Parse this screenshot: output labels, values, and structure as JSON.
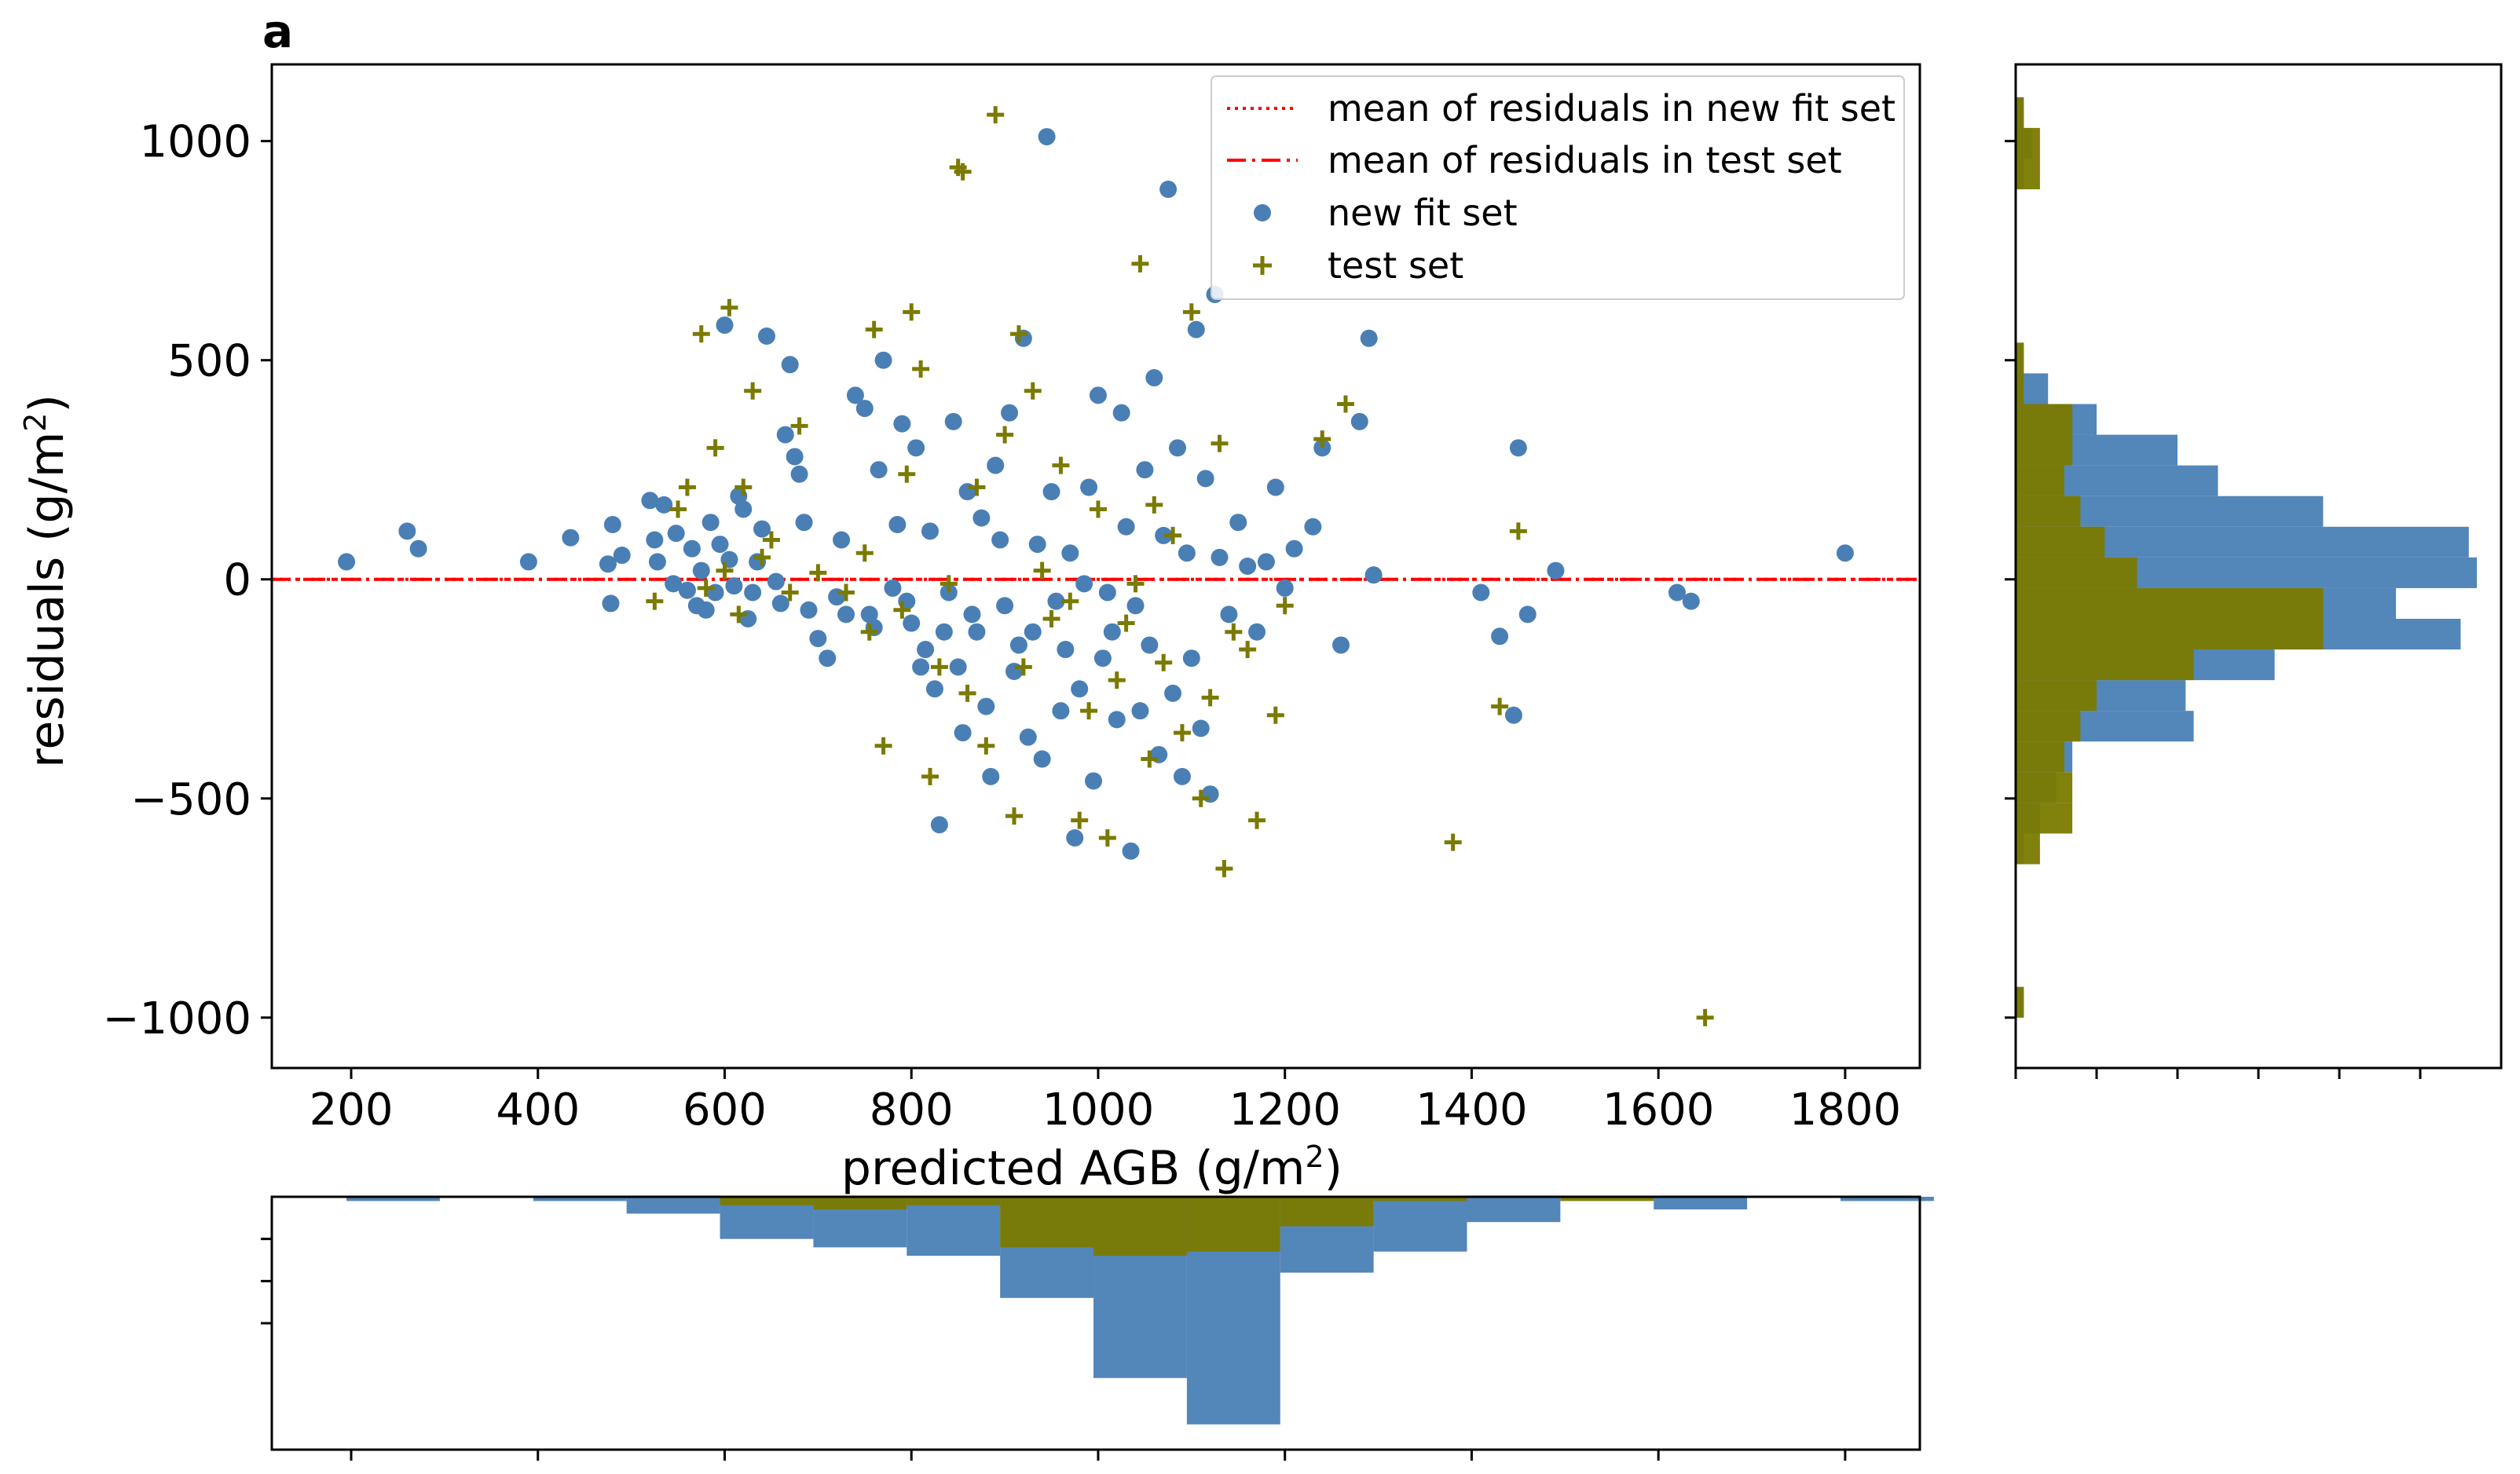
{
  "panel_label": "a",
  "colors": {
    "fit": "#4a7fb5",
    "test": "#7a7a00",
    "mean_line": "#ff0000",
    "axis": "#000000"
  },
  "legend": {
    "items": [
      {
        "label": "mean of residuals in new fit set",
        "style": "dotted"
      },
      {
        "label": "mean of residuals in test set",
        "style": "dashdot"
      },
      {
        "label": "new fit set",
        "style": "circle"
      },
      {
        "label": "test set",
        "style": "plus"
      }
    ]
  },
  "chart_data": {
    "type": "scatter",
    "title": "",
    "xlabel": "predicted AGB (g/m",
    "xlabel_sup": "2",
    "xlabel_end": ")",
    "ylabel": "residuals (g/m",
    "ylabel_sup": "2",
    "ylabel_end": ")",
    "xlim": [
      115,
      1880
    ],
    "ylim": [
      -1115,
      1175
    ],
    "xticks": [
      200,
      400,
      600,
      800,
      1000,
      1200,
      1400,
      1600,
      1800
    ],
    "xtick_labels": [
      "200",
      "400",
      "600",
      "800",
      "1000",
      "1200",
      "1400",
      "1600",
      "1800"
    ],
    "yticks": [
      1000,
      500,
      0,
      -500,
      -1000
    ],
    "ytick_labels": [
      "1000",
      "500",
      "0",
      "−500",
      "−1000"
    ],
    "mean_fit": 0,
    "mean_test": 0,
    "series": [
      {
        "name": "new fit set",
        "marker": "circle",
        "points": [
          [
            195,
            40
          ],
          [
            260,
            110
          ],
          [
            272,
            70
          ],
          [
            390,
            40
          ],
          [
            435,
            95
          ],
          [
            475,
            35
          ],
          [
            478,
            -55
          ],
          [
            480,
            125
          ],
          [
            490,
            55
          ],
          [
            520,
            180
          ],
          [
            525,
            90
          ],
          [
            528,
            40
          ],
          [
            535,
            170
          ],
          [
            545,
            -10
          ],
          [
            548,
            105
          ],
          [
            560,
            -25
          ],
          [
            565,
            70
          ],
          [
            570,
            -60
          ],
          [
            575,
            20
          ],
          [
            580,
            -70
          ],
          [
            585,
            130
          ],
          [
            590,
            -30
          ],
          [
            595,
            80
          ],
          [
            600,
            580
          ],
          [
            605,
            45
          ],
          [
            610,
            -15
          ],
          [
            615,
            190
          ],
          [
            620,
            160
          ],
          [
            625,
            -90
          ],
          [
            630,
            -30
          ],
          [
            635,
            40
          ],
          [
            640,
            115
          ],
          [
            645,
            555
          ],
          [
            655,
            -5
          ],
          [
            660,
            -55
          ],
          [
            665,
            330
          ],
          [
            670,
            490
          ],
          [
            675,
            280
          ],
          [
            680,
            240
          ],
          [
            685,
            130
          ],
          [
            690,
            -70
          ],
          [
            700,
            -135
          ],
          [
            710,
            -180
          ],
          [
            720,
            -40
          ],
          [
            725,
            90
          ],
          [
            730,
            -80
          ],
          [
            740,
            420
          ],
          [
            750,
            390
          ],
          [
            755,
            -80
          ],
          [
            760,
            -110
          ],
          [
            765,
            250
          ],
          [
            770,
            500
          ],
          [
            780,
            -20
          ],
          [
            785,
            125
          ],
          [
            790,
            355
          ],
          [
            795,
            -50
          ],
          [
            800,
            -100
          ],
          [
            805,
            300
          ],
          [
            810,
            -200
          ],
          [
            815,
            -160
          ],
          [
            820,
            110
          ],
          [
            825,
            -250
          ],
          [
            830,
            -560
          ],
          [
            835,
            -120
          ],
          [
            840,
            -30
          ],
          [
            845,
            360
          ],
          [
            850,
            -200
          ],
          [
            855,
            -350
          ],
          [
            860,
            200
          ],
          [
            865,
            -80
          ],
          [
            870,
            -120
          ],
          [
            875,
            140
          ],
          [
            880,
            -290
          ],
          [
            885,
            -450
          ],
          [
            890,
            260
          ],
          [
            895,
            90
          ],
          [
            900,
            -60
          ],
          [
            905,
            380
          ],
          [
            910,
            -210
          ],
          [
            915,
            -150
          ],
          [
            920,
            550
          ],
          [
            925,
            -360
          ],
          [
            930,
            -120
          ],
          [
            935,
            80
          ],
          [
            940,
            -410
          ],
          [
            945,
            1010
          ],
          [
            950,
            200
          ],
          [
            955,
            -50
          ],
          [
            960,
            -300
          ],
          [
            965,
            -160
          ],
          [
            970,
            60
          ],
          [
            975,
            -590
          ],
          [
            980,
            -250
          ],
          [
            985,
            -10
          ],
          [
            990,
            210
          ],
          [
            995,
            -460
          ],
          [
            1000,
            420
          ],
          [
            1005,
            -180
          ],
          [
            1010,
            -30
          ],
          [
            1015,
            -120
          ],
          [
            1020,
            -320
          ],
          [
            1025,
            380
          ],
          [
            1030,
            120
          ],
          [
            1035,
            -620
          ],
          [
            1040,
            -60
          ],
          [
            1045,
            -300
          ],
          [
            1050,
            250
          ],
          [
            1055,
            -150
          ],
          [
            1060,
            460
          ],
          [
            1065,
            -400
          ],
          [
            1070,
            100
          ],
          [
            1075,
            890
          ],
          [
            1080,
            -260
          ],
          [
            1085,
            300
          ],
          [
            1090,
            -450
          ],
          [
            1095,
            60
          ],
          [
            1100,
            -180
          ],
          [
            1105,
            570
          ],
          [
            1110,
            -340
          ],
          [
            1115,
            230
          ],
          [
            1120,
            -490
          ],
          [
            1125,
            650
          ],
          [
            1130,
            50
          ],
          [
            1140,
            -80
          ],
          [
            1150,
            130
          ],
          [
            1160,
            30
          ],
          [
            1170,
            -120
          ],
          [
            1180,
            40
          ],
          [
            1190,
            210
          ],
          [
            1200,
            -20
          ],
          [
            1210,
            70
          ],
          [
            1230,
            120
          ],
          [
            1240,
            300
          ],
          [
            1260,
            -150
          ],
          [
            1280,
            360
          ],
          [
            1290,
            550
          ],
          [
            1295,
            10
          ],
          [
            1410,
            -30
          ],
          [
            1430,
            -130
          ],
          [
            1445,
            -310
          ],
          [
            1450,
            300
          ],
          [
            1460,
            -80
          ],
          [
            1490,
            20
          ],
          [
            1620,
            -30
          ],
          [
            1635,
            -50
          ],
          [
            1800,
            60
          ]
        ]
      },
      {
        "name": "test set",
        "marker": "plus",
        "points": [
          [
            525,
            -50
          ],
          [
            550,
            160
          ],
          [
            560,
            210
          ],
          [
            575,
            560
          ],
          [
            580,
            -20
          ],
          [
            590,
            300
          ],
          [
            600,
            20
          ],
          [
            605,
            620
          ],
          [
            615,
            -80
          ],
          [
            620,
            210
          ],
          [
            630,
            430
          ],
          [
            640,
            50
          ],
          [
            650,
            90
          ],
          [
            670,
            -30
          ],
          [
            680,
            350
          ],
          [
            700,
            15
          ],
          [
            730,
            -30
          ],
          [
            750,
            60
          ],
          [
            755,
            -120
          ],
          [
            760,
            570
          ],
          [
            770,
            -380
          ],
          [
            790,
            -70
          ],
          [
            795,
            240
          ],
          [
            800,
            610
          ],
          [
            810,
            480
          ],
          [
            820,
            -450
          ],
          [
            830,
            -200
          ],
          [
            840,
            -10
          ],
          [
            850,
            940
          ],
          [
            855,
            930
          ],
          [
            860,
            -260
          ],
          [
            870,
            210
          ],
          [
            880,
            -380
          ],
          [
            890,
            1060
          ],
          [
            900,
            330
          ],
          [
            910,
            -540
          ],
          [
            915,
            560
          ],
          [
            920,
            -200
          ],
          [
            930,
            430
          ],
          [
            940,
            20
          ],
          [
            950,
            -90
          ],
          [
            960,
            260
          ],
          [
            970,
            -50
          ],
          [
            980,
            -550
          ],
          [
            990,
            -300
          ],
          [
            1000,
            160
          ],
          [
            1010,
            -590
          ],
          [
            1020,
            -230
          ],
          [
            1030,
            -100
          ],
          [
            1040,
            -10
          ],
          [
            1045,
            720
          ],
          [
            1055,
            -410
          ],
          [
            1060,
            170
          ],
          [
            1070,
            -190
          ],
          [
            1080,
            100
          ],
          [
            1090,
            -350
          ],
          [
            1100,
            610
          ],
          [
            1110,
            -500
          ],
          [
            1120,
            -270
          ],
          [
            1130,
            310
          ],
          [
            1135,
            -660
          ],
          [
            1145,
            -120
          ],
          [
            1160,
            -160
          ],
          [
            1170,
            -550
          ],
          [
            1190,
            -310
          ],
          [
            1200,
            -60
          ],
          [
            1240,
            320
          ],
          [
            1265,
            400
          ],
          [
            1380,
            -600
          ],
          [
            1430,
            -290
          ],
          [
            1450,
            110
          ],
          [
            1650,
            -1000
          ]
        ]
      }
    ],
    "top_histogram": {
      "bins": [
        195,
        295,
        395,
        495,
        595,
        695,
        795,
        895,
        995,
        1095,
        1195,
        1295,
        1395,
        1495,
        1595,
        1695,
        1795,
        1895
      ],
      "fit_counts": [
        1,
        0,
        1,
        4,
        10,
        12,
        14,
        24,
        43,
        54,
        18,
        13,
        6,
        0,
        3,
        0,
        1
      ],
      "test_counts": [
        0,
        0,
        0,
        0,
        2,
        3,
        2,
        12,
        14,
        13,
        7,
        1,
        0,
        1,
        0,
        0,
        0
      ],
      "ylim": [
        0,
        60
      ]
    },
    "right_histogram": {
      "bins": [
        -1000,
        -930,
        -860,
        -790,
        -720,
        -650,
        -580,
        -510,
        -440,
        -370,
        -300,
        -230,
        -160,
        -90,
        -20,
        50,
        120,
        190,
        260,
        330,
        400,
        470,
        540,
        610,
        680,
        750,
        820,
        890,
        960,
        1030,
        1100
      ],
      "fit_counts": [
        1,
        0,
        0,
        0,
        0,
        1,
        3,
        5,
        7,
        22,
        21,
        32,
        55,
        47,
        57,
        56,
        38,
        25,
        20,
        10,
        4,
        1,
        0,
        0,
        0,
        0,
        0,
        1,
        2,
        1,
        0
      ],
      "test_counts": [
        1,
        0,
        0,
        0,
        0,
        3,
        7,
        7,
        6,
        8,
        10,
        22,
        38,
        38,
        15,
        11,
        8,
        6,
        7,
        7,
        1,
        1,
        0,
        0,
        0,
        0,
        0,
        3,
        3,
        1,
        0
      ],
      "xlim": [
        0,
        60
      ]
    }
  }
}
